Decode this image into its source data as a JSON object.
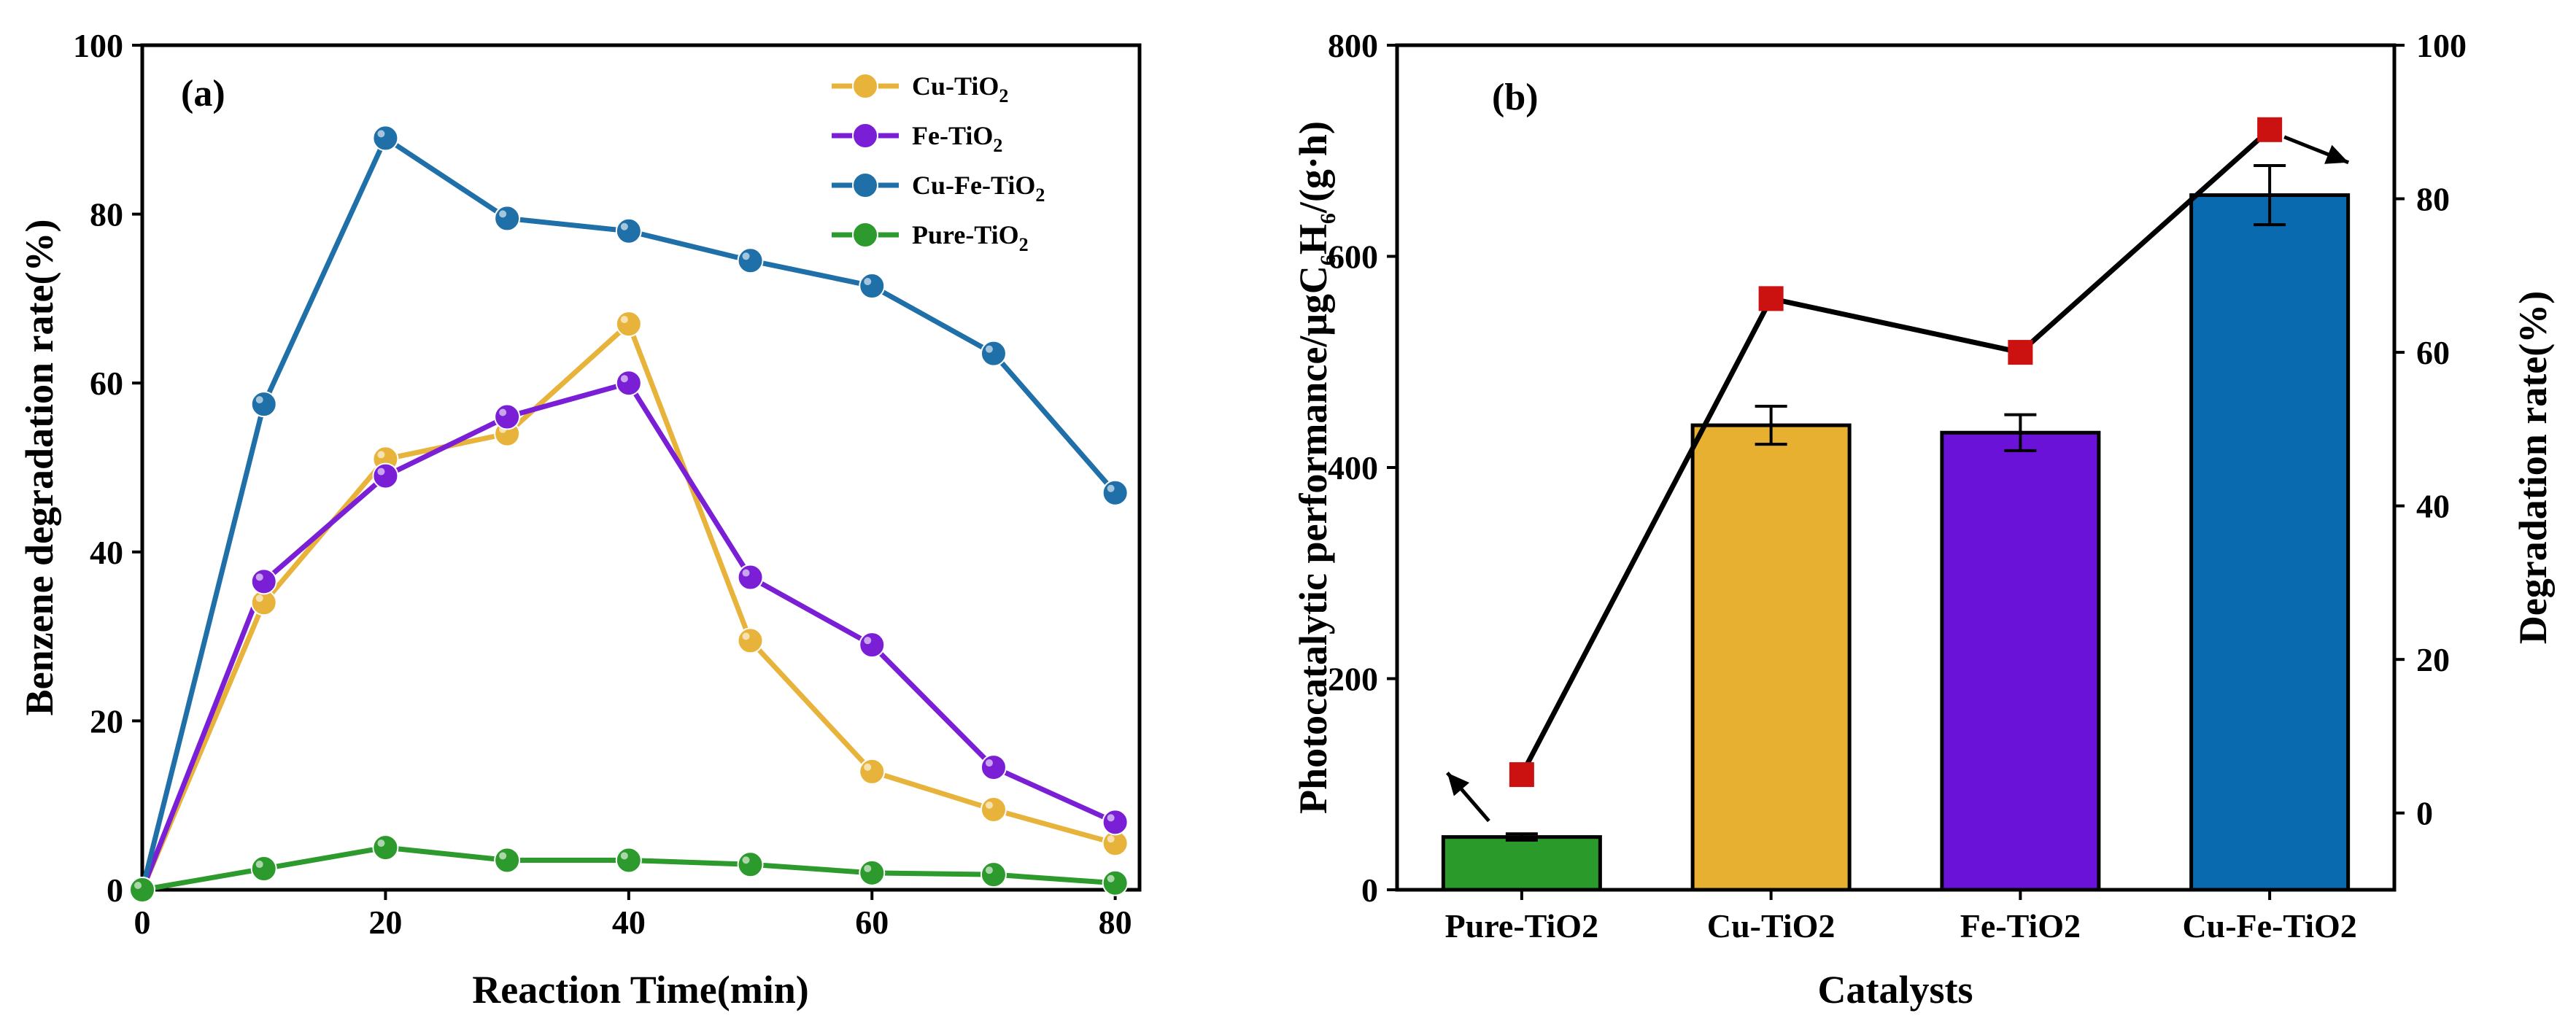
{
  "chart_data": [
    {
      "type": "line",
      "panel_label": "(a)",
      "xlabel": "Reaction Time(min)",
      "ylabel": "Benzene degradation rate(%)",
      "xlim": [
        0,
        82
      ],
      "ylim": [
        0,
        100
      ],
      "xticks": [
        0,
        20,
        40,
        60,
        80
      ],
      "yticks": [
        0,
        20,
        40,
        60,
        80,
        100
      ],
      "legend_position": "top-right",
      "x": [
        0,
        10,
        20,
        30,
        40,
        50,
        60,
        70,
        80
      ],
      "series": [
        {
          "name": "Cu-TiO",
          "sub": "2",
          "color": "#e8b33a",
          "values": [
            0,
            34,
            51,
            54,
            67,
            29.5,
            14,
            9.5,
            5.5
          ]
        },
        {
          "name": "Fe-TiO",
          "sub": "2",
          "color": "#7a1fd6",
          "values": [
            0,
            36.5,
            49,
            56,
            60,
            37,
            29,
            14.5,
            8
          ]
        },
        {
          "name": "Cu-Fe-TiO",
          "sub": "2",
          "color": "#1f6fa8",
          "values": [
            0,
            57.5,
            89,
            79.5,
            78,
            74.5,
            71.5,
            63.5,
            47
          ]
        },
        {
          "name": "Pure-TiO",
          "sub": "2",
          "color": "#2c9a2c",
          "values": [
            0,
            2.5,
            5,
            3.5,
            3.5,
            3,
            2,
            1.8,
            0.8
          ]
        }
      ]
    },
    {
      "type": "bar",
      "panel_label": "(b)",
      "xlabel": "Catalysts",
      "ylabel_parts": [
        "Photocatalytic performance/μgC",
        "6",
        "H",
        "6",
        "/(g·h)"
      ],
      "y2label": "Degradation rate(%)",
      "ylim": [
        0,
        800
      ],
      "yticks": [
        0,
        200,
        400,
        600,
        800
      ],
      "y2lim": [
        -10,
        100
      ],
      "y2ticks": [
        0,
        20,
        40,
        60,
        80,
        100
      ],
      "categories": [
        "Pure-TiO2",
        "Cu-TiO2",
        "Fe-TiO2",
        "Cu-Fe-TiO2"
      ],
      "values": [
        50,
        440,
        433,
        658
      ],
      "errors": [
        3,
        18,
        17,
        28
      ],
      "colors": [
        "#2a9a2a",
        "#e8b030",
        "#6b12d8",
        "#0a6ab0"
      ],
      "degradation_rate": [
        5,
        67,
        60,
        89
      ],
      "marker_color": "#cc1111",
      "line_color": "#000000"
    }
  ]
}
